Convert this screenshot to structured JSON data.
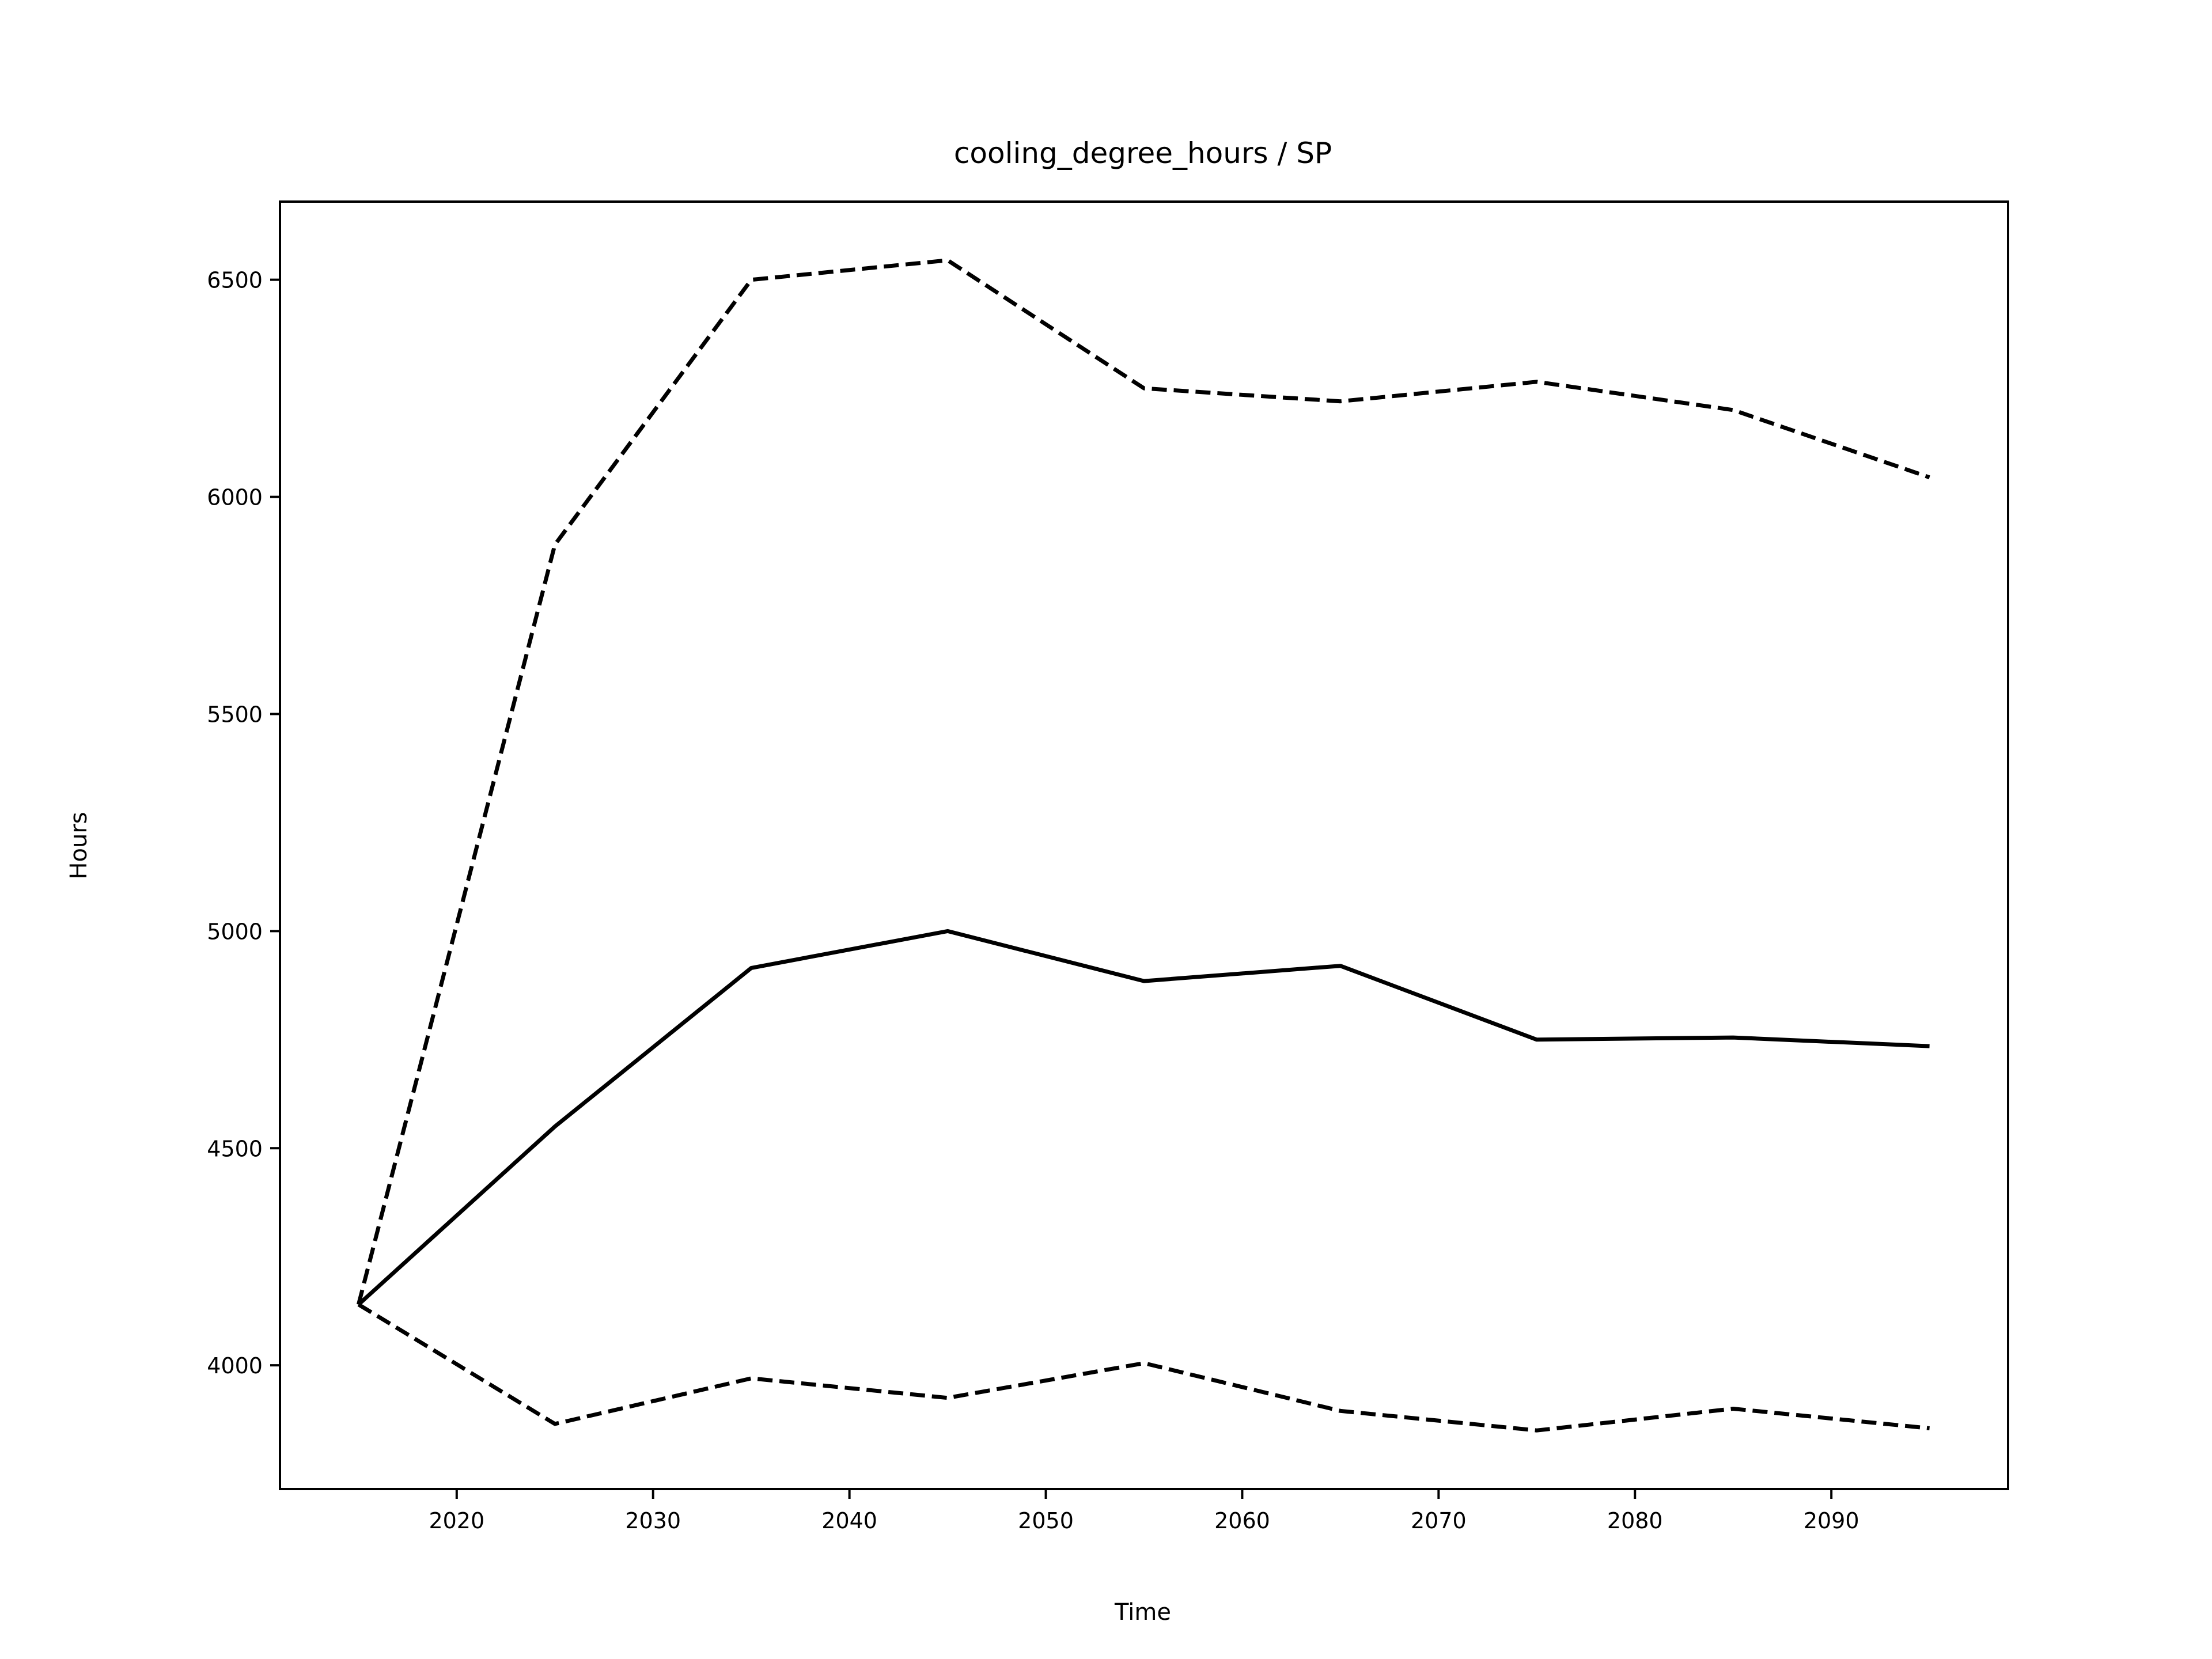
{
  "chart_data": {
    "type": "line",
    "title": "cooling_degree_hours / SP",
    "xlabel": "Time",
    "ylabel": "Hours",
    "xlim": [
      2011,
      2099
    ],
    "ylim": [
      3715,
      6680
    ],
    "xticks": [
      "2020",
      "2030",
      "2040",
      "2050",
      "2060",
      "2070",
      "2080",
      "2090"
    ],
    "yticks": [
      "4000",
      "4500",
      "5000",
      "5500",
      "6000",
      "6500"
    ],
    "grid": false,
    "x": [
      2015,
      2025,
      2035,
      2045,
      2055,
      2065,
      2075,
      2085,
      2095
    ],
    "series": [
      {
        "values": [
          4140,
          4550,
          4915,
          5000,
          4885,
          4920,
          4750,
          4755,
          4735
        ],
        "style": "solid",
        "color": "#000000"
      },
      {
        "values": [
          4140,
          5890,
          6500,
          6545,
          6250,
          6220,
          6265,
          6200,
          6045
        ],
        "style": "dashed",
        "color": "#000000"
      },
      {
        "values": [
          4140,
          3865,
          3970,
          3925,
          4005,
          3895,
          3850,
          3900,
          3855
        ],
        "style": "dashed",
        "color": "#000000"
      }
    ]
  }
}
